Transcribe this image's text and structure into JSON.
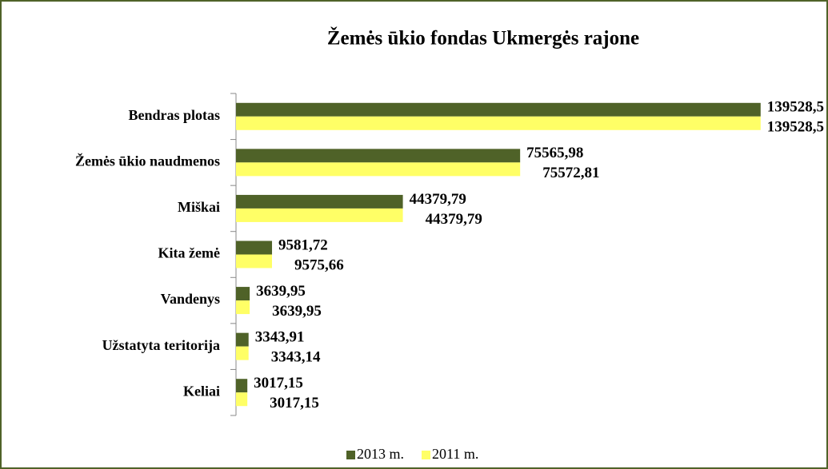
{
  "chart_data": {
    "type": "bar",
    "orientation": "horizontal",
    "title": "Žemės ūkio fondas Ukmergės rajone",
    "categories": [
      "Bendras plotas",
      "Žemės ūkio naudmenos",
      "Miškai",
      "Kita žemė",
      "Vandenys",
      "Užstatyta teritorija",
      "Keliai"
    ],
    "series": [
      {
        "name": "2013 m.",
        "color": "#4f6228",
        "values": [
          139528.5,
          75565.98,
          44379.79,
          9581.72,
          3639.95,
          3343.91,
          3017.15
        ],
        "value_labels": [
          "139528,5",
          "75565,98",
          "44379,79",
          "9581,72",
          "3639,95",
          "3343,91",
          "3017,15"
        ]
      },
      {
        "name": "2011 m.",
        "color": "#ffff66",
        "values": [
          139528.5,
          75572.81,
          44379.79,
          9575.66,
          3639.95,
          3343.14,
          3017.15
        ],
        "value_labels": [
          "139528,5",
          "75572,81",
          "44379,79",
          "9575,66",
          "3639,95",
          "3343,14",
          "3017,15"
        ]
      }
    ],
    "xlim": [
      0,
      150000
    ],
    "legend": "bottom"
  }
}
